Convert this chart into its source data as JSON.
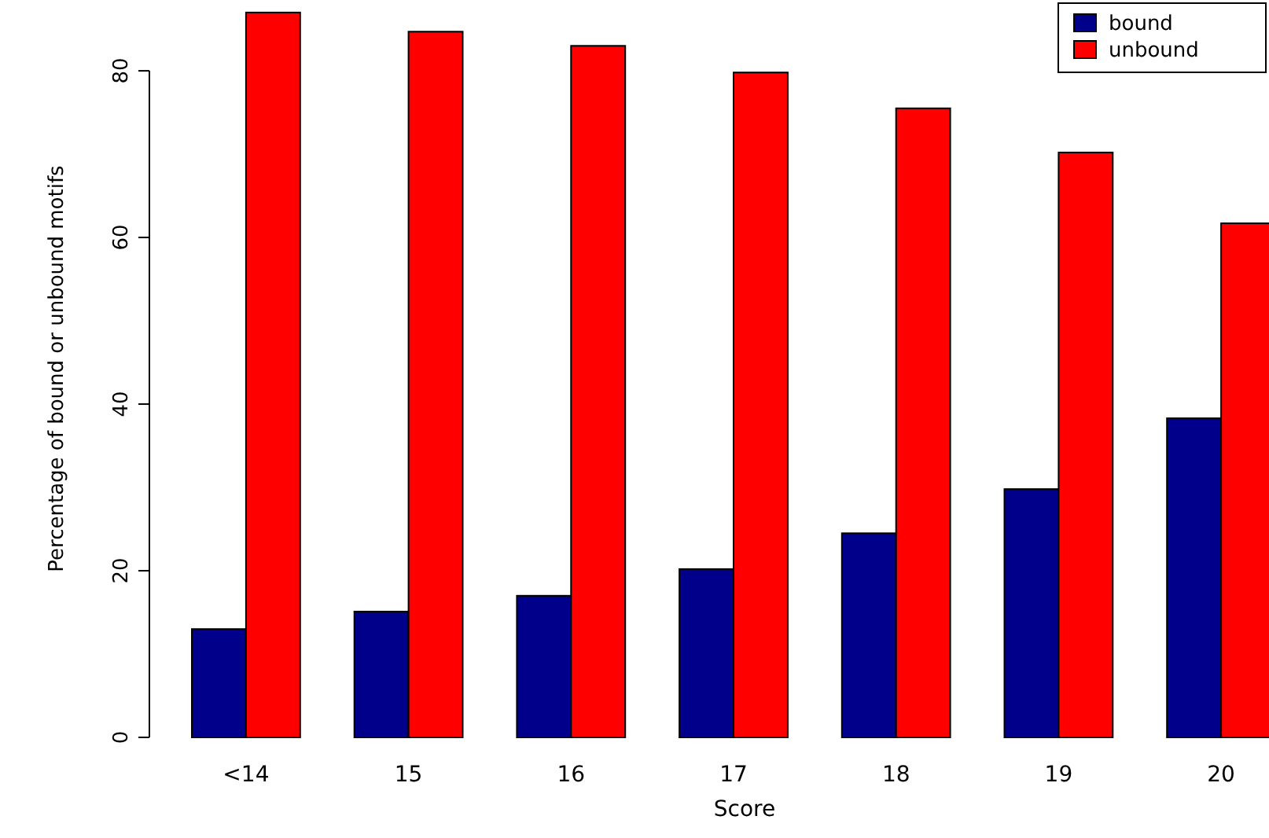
{
  "chart_data": {
    "type": "bar",
    "xlabel": "Score",
    "ylabel": "Percentage of bound or unbound motifs",
    "categories": [
      "<14",
      "15",
      "16",
      "17",
      "18",
      "19",
      "20"
    ],
    "series": [
      {
        "name": "bound",
        "color": "#00008b",
        "values": [
          13.0,
          15.1,
          17.0,
          20.2,
          24.5,
          29.8,
          38.3
        ]
      },
      {
        "name": "unbound",
        "color": "#ff0000",
        "values": [
          87.0,
          84.7,
          83.0,
          79.8,
          75.5,
          70.2,
          61.7
        ]
      }
    ],
    "ylim": [
      0,
      88.5
    ],
    "yticks": [
      0,
      20,
      40,
      60,
      80
    ],
    "legend": "top right"
  }
}
